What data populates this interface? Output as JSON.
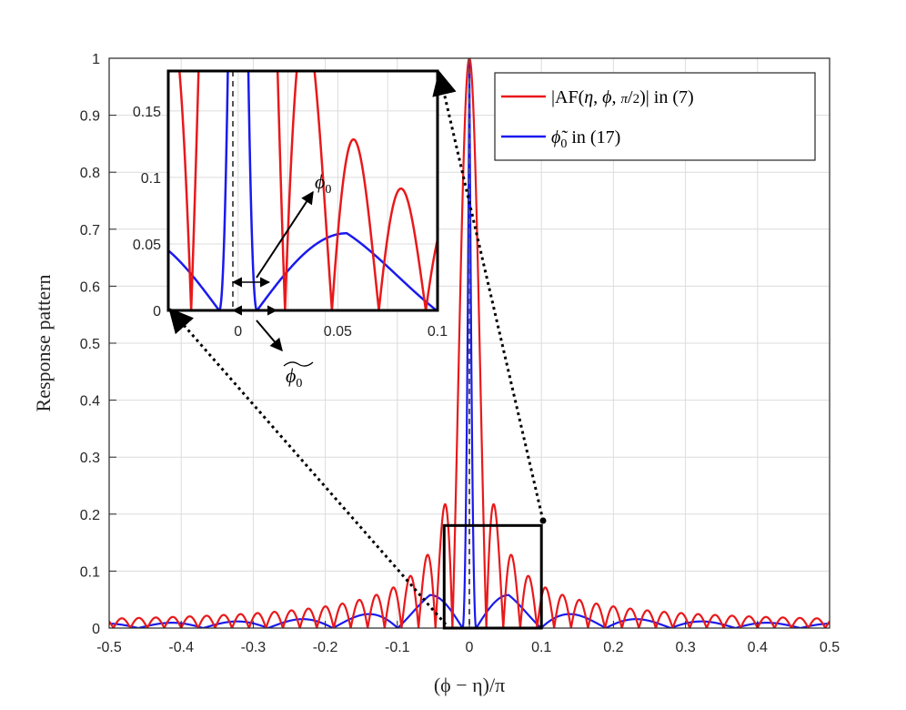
{
  "chart_data": {
    "type": "line",
    "xlabel": "(ϕ − η)/π",
    "ylabel": "Response pattern",
    "xlim": [
      -0.5,
      0.5
    ],
    "ylim": [
      0,
      1
    ],
    "x_ticks": [
      "-0.5",
      "-0.4",
      "-0.3",
      "-0.2",
      "-0.1",
      "0",
      "0.1",
      "0.2",
      "0.3",
      "0.4",
      "0.5"
    ],
    "y_ticks": [
      "0",
      "0.1",
      "0.2",
      "0.3",
      "0.4",
      "0.5",
      "0.6",
      "0.7",
      "0.8",
      "0.9",
      "1"
    ],
    "grid": true,
    "legend_position": "top-right",
    "series": [
      {
        "name": "|AF(η, ϕ, π/2)| in (7)",
        "color": "#e8191b",
        "description_params": {
          "mainlobe_null": 0.0118,
          "first_sidelobe": 0.129,
          "sidelobe_decay_level": 0.012
        },
        "x": [
          -0.5,
          -0.4,
          -0.3,
          -0.2,
          -0.1,
          -0.05,
          -0.0265,
          -0.0118,
          0,
          0.0118,
          0.0265,
          0.05,
          0.1,
          0.2,
          0.3,
          0.4,
          0.5
        ],
        "y": [
          0.012,
          0.014,
          0.016,
          0.022,
          0.035,
          0.06,
          0.129,
          0,
          1,
          0,
          0.129,
          0.06,
          0.035,
          0.022,
          0.016,
          0.014,
          0.012
        ]
      },
      {
        "name": "ϕ̃₀ in (17)",
        "color": "#1a1aee",
        "x": [
          -0.5,
          -0.4,
          -0.3,
          -0.2,
          -0.1,
          -0.0545,
          -0.0095,
          0,
          0.0095,
          0.0545,
          0.1,
          0.2,
          0.3,
          0.4,
          0.5
        ],
        "y": [
          0.006,
          0.01,
          0.015,
          0.025,
          0.045,
          0.058,
          0,
          1,
          0,
          0.058,
          0.045,
          0.025,
          0.015,
          0.01,
          0.006
        ]
      }
    ],
    "inset": {
      "xlim": [
        -0.035,
        0.1
      ],
      "ylim": [
        0,
        0.18
      ],
      "x_ticks": [
        "0",
        "0.05",
        "0.1"
      ],
      "y_ticks": [
        "0",
        "0.05",
        "0.1",
        "0.15"
      ],
      "annotations": [
        "ϕ₀",
        "ϕ̃₀"
      ]
    },
    "zoom_box": {
      "x": [
        -0.035,
        0.1
      ],
      "y": [
        0,
        0.18
      ]
    }
  }
}
